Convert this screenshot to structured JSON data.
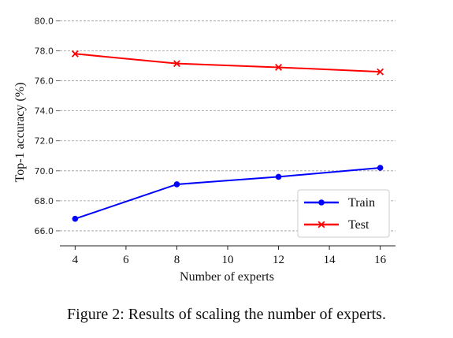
{
  "chart_data": {
    "type": "line",
    "xlabel": "Number of experts",
    "ylabel": "Top-1 accuracy (%)",
    "xlim": [
      3.4,
      16.6
    ],
    "ylim": [
      65.0,
      80.6
    ],
    "x_ticks": [
      4,
      6,
      8,
      10,
      12,
      14,
      16
    ],
    "y_ticks": [
      66.0,
      68.0,
      70.0,
      72.0,
      74.0,
      76.0,
      78.0,
      80.0
    ],
    "y_tick_labels": [
      "66.0",
      "68.0",
      "70.0",
      "72.0",
      "74.0",
      "76.0",
      "78.0",
      "80.0"
    ],
    "grid": "horizontal dashed",
    "legend_position": "lower-right",
    "series": [
      {
        "name": "Train",
        "x": [
          4,
          8,
          12,
          16
        ],
        "values": [
          66.8,
          69.1,
          69.6,
          70.2
        ],
        "color": "#0000ff",
        "marker": "circle"
      },
      {
        "name": "Test",
        "x": [
          4,
          8,
          12,
          16
        ],
        "values": [
          77.8,
          77.15,
          76.9,
          76.6
        ],
        "color": "#ff0000",
        "marker": "x"
      }
    ]
  },
  "caption": "Figure 2: Results of scaling the number of experts."
}
